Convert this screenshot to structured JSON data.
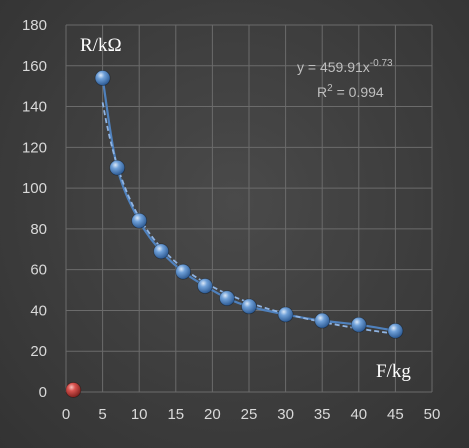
{
  "chart_data": {
    "type": "scatter",
    "ylabel": "R/kΩ",
    "xlabel": "F/kg",
    "xlim": [
      0,
      50
    ],
    "ylim": [
      0,
      180
    ],
    "xticks": [
      0,
      5,
      10,
      15,
      20,
      25,
      30,
      35,
      40,
      45,
      50
    ],
    "yticks": [
      0,
      20,
      40,
      60,
      80,
      100,
      120,
      140,
      160,
      180
    ],
    "grid": true,
    "series": [
      {
        "color": "#4f81bd",
        "points": [
          {
            "x": 5,
            "y": 154
          },
          {
            "x": 7,
            "y": 110
          },
          {
            "x": 10,
            "y": 84
          },
          {
            "x": 13,
            "y": 69
          },
          {
            "x": 16,
            "y": 59
          },
          {
            "x": 19,
            "y": 52
          },
          {
            "x": 22,
            "y": 46
          },
          {
            "x": 25,
            "y": 42
          },
          {
            "x": 30,
            "y": 38
          },
          {
            "x": 35,
            "y": 35
          },
          {
            "x": 40,
            "y": 33
          },
          {
            "x": 45,
            "y": 30
          }
        ]
      },
      {
        "color": "#c0504d",
        "points": [
          {
            "x": 1,
            "y": 1
          }
        ]
      }
    ],
    "trendline": {
      "type": "power",
      "coefficient": 459.91,
      "exponent": -0.73,
      "equation_prefix": "y = 459.91x",
      "equation_exponent": "-0.73",
      "r2_prefix": "R",
      "r2_exp": "2",
      "r2_suffix": " = 0.994",
      "color": "#8fb4e3"
    }
  }
}
